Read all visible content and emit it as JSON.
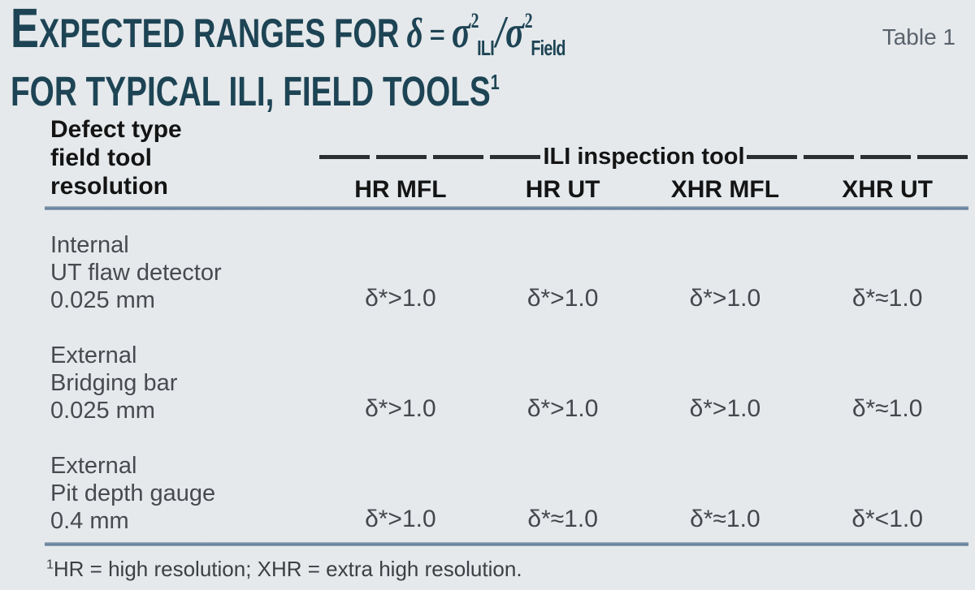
{
  "page": {
    "background": "#e5e9ec",
    "accent_rule_color": "#68819b",
    "title_color": "#1d4454",
    "table_label": "Table 1"
  },
  "title": {
    "dropcap": "E",
    "line1_rest": "XPECTED RANGES FOR",
    "formula": {
      "delta": "δ",
      "eq": "=",
      "sigma1": "σ",
      "power1": "2",
      "sub1": "ILI",
      "slash": "/",
      "sigma2": "σ",
      "power2": "2",
      "sub2": "Field"
    },
    "line2": "FOR TYPICAL ILI, FIELD TOOLS",
    "line2_sup": "1"
  },
  "table": {
    "corner_header": [
      "Defect type",
      "field tool",
      "resolution"
    ],
    "span_header": "ILI inspection tool",
    "columns": [
      "HR MFL",
      "HR UT",
      "XHR MFL",
      "XHR UT"
    ],
    "rows": [
      {
        "label_lines": [
          "Internal",
          "UT flaw detector",
          "0.025 mm"
        ],
        "values": [
          "δ*>1.0",
          "δ*>1.0",
          "δ*>1.0",
          "δ*≈1.0"
        ]
      },
      {
        "label_lines": [
          "External",
          "Bridging bar",
          "0.025 mm"
        ],
        "values": [
          "δ*>1.0",
          "δ*>1.0",
          "δ*>1.0",
          "δ*≈1.0"
        ]
      },
      {
        "label_lines": [
          "External",
          "Pit depth gauge",
          "0.4 mm"
        ],
        "values": [
          "δ*>1.0",
          "δ*≈1.0",
          "δ*≈1.0",
          "δ*<1.0"
        ]
      }
    ],
    "footnote_sup": "1",
    "footnote_text": "HR = high resolution; XHR = extra high resolution."
  },
  "chart_data": {
    "type": "table",
    "title": "Expected ranges for δ = σ²ILI/σ²Field for typical ILI, field tools",
    "table_label": "Table 1",
    "row_header": "Defect type field tool resolution",
    "column_group_header": "ILI inspection tool",
    "columns": [
      "HR MFL",
      "HR UT",
      "XHR MFL",
      "XHR UT"
    ],
    "rows": [
      {
        "defect": "Internal, UT flaw detector, 0.025 mm",
        "values": [
          "δ*>1.0",
          "δ*>1.0",
          "δ*>1.0",
          "δ*≈1.0"
        ]
      },
      {
        "defect": "External, Bridging bar, 0.025 mm",
        "values": [
          "δ*>1.0",
          "δ*>1.0",
          "δ*>1.0",
          "δ*≈1.0"
        ]
      },
      {
        "defect": "External, Pit depth gauge, 0.4 mm",
        "values": [
          "δ*>1.0",
          "δ*≈1.0",
          "δ*≈1.0",
          "δ*<1.0"
        ]
      }
    ],
    "footnote": "¹HR = high resolution; XHR = extra high resolution.",
    "layout": {
      "grid": false,
      "legend": "none"
    }
  }
}
